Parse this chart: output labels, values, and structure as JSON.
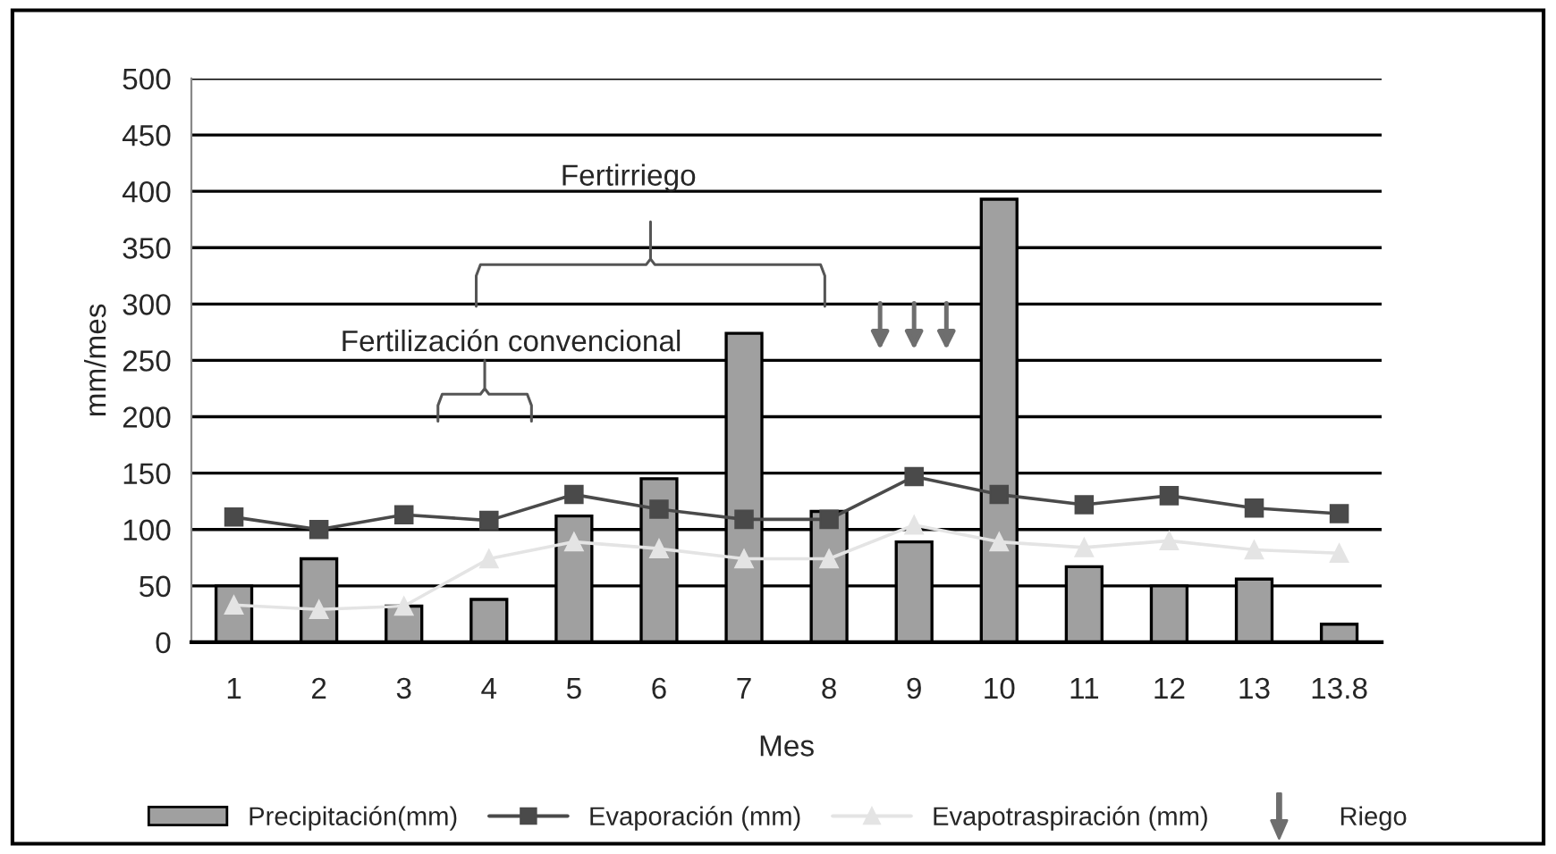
{
  "chart_data": {
    "type": "bar",
    "xlabel": "Mes",
    "ylabel": "mm/mes",
    "categories": [
      "1",
      "2",
      "3",
      "4",
      "5",
      "6",
      "7",
      "8",
      "9",
      "10",
      "11",
      "12",
      "13",
      "13.8"
    ],
    "series": [
      {
        "name": "Precipitación(mm)",
        "color": "#a0a0a0",
        "values": [
          50,
          74,
          32,
          38,
          112,
          145,
          274,
          116,
          89,
          393,
          67,
          50,
          56,
          16
        ]
      },
      {
        "name": "Evaporación (mm)",
        "type": "line",
        "color": "#4a4a4a",
        "marker": "square",
        "values": [
          111,
          100,
          113,
          108,
          131,
          118,
          109,
          109,
          147,
          131,
          122,
          130,
          119,
          114
        ]
      },
      {
        "name": "Evapotraspiración (mm)",
        "type": "line",
        "color": "#e4e4e4",
        "marker": "triangle",
        "values": [
          33,
          29,
          32,
          74,
          89,
          83,
          74,
          74,
          104,
          89,
          84,
          90,
          82,
          79
        ]
      }
    ],
    "ylim": [
      0,
      500
    ],
    "yticks": [
      0,
      50,
      100,
      150,
      200,
      250,
      300,
      350,
      400,
      450,
      500
    ],
    "grid": "y",
    "legend": "bottom",
    "annotations": [
      "Fertirriego",
      "Fertilización convencional",
      "Riego"
    ]
  }
}
